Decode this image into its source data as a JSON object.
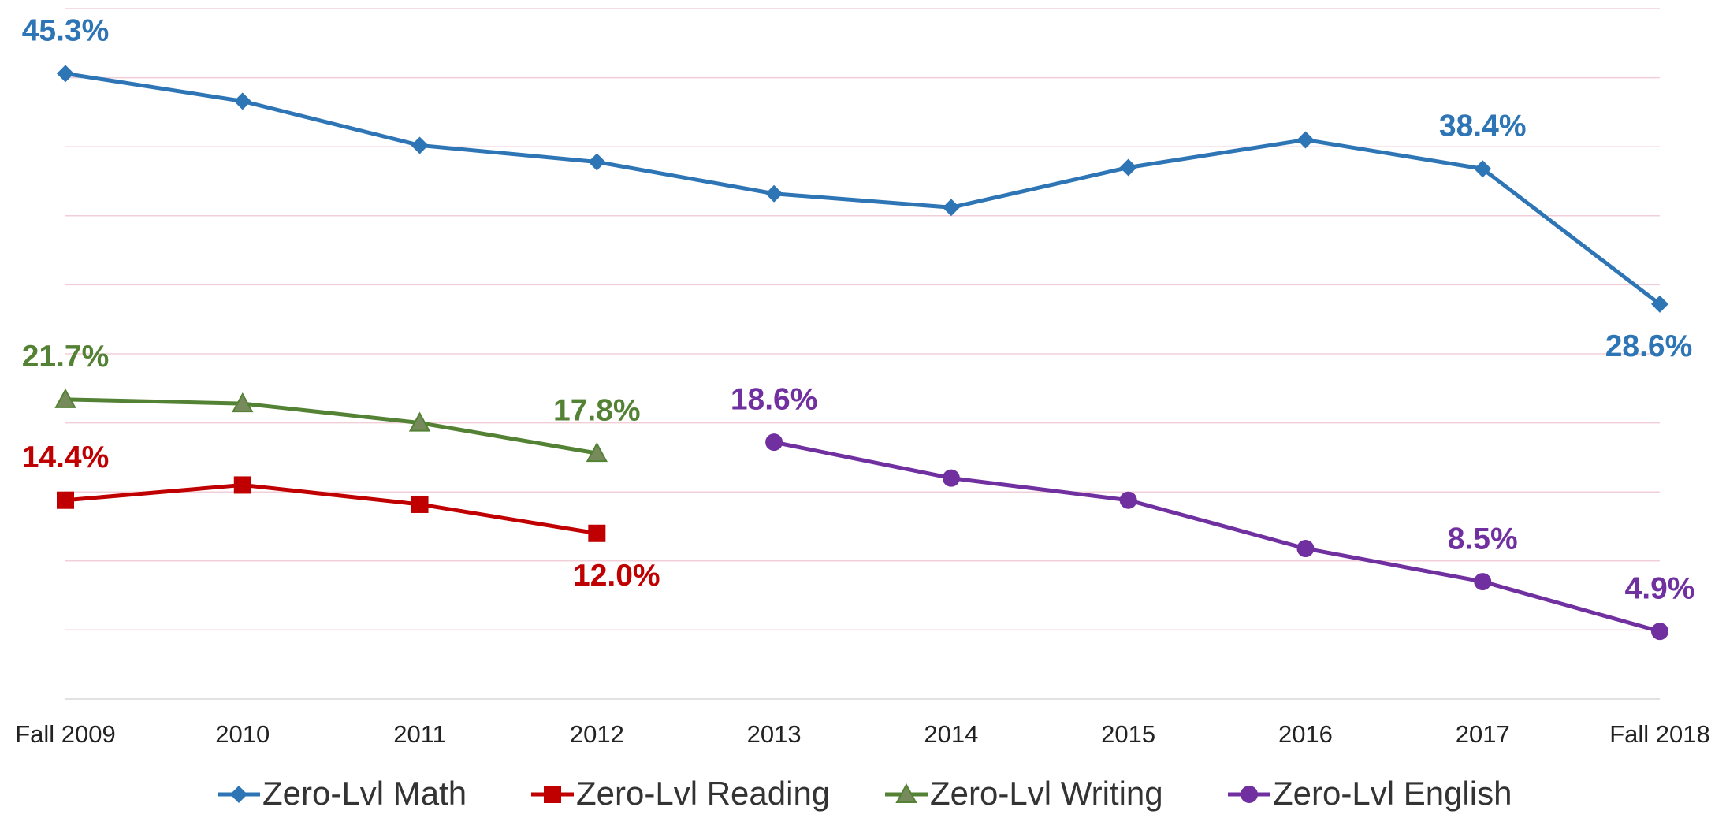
{
  "chart_data": {
    "type": "line",
    "categories": [
      "Fall 2009",
      "2010",
      "2011",
      "2012",
      "2013",
      "2014",
      "2015",
      "2016",
      "2017",
      "Fall 2018"
    ],
    "ylim": [
      0,
      50
    ],
    "yticks": [
      0,
      5,
      10,
      15,
      20,
      25,
      30,
      35,
      40,
      45,
      50
    ],
    "grid": true,
    "legend": "bottom",
    "series": [
      {
        "name": "Zero-Lvl Math",
        "color": "#2e75b6",
        "marker": "diamond",
        "values": [
          45.3,
          43.3,
          40.1,
          38.9,
          36.6,
          35.6,
          38.5,
          40.5,
          38.4,
          28.6
        ],
        "value_labels": [
          "45.3%",
          null,
          null,
          null,
          null,
          null,
          null,
          null,
          "38.4%",
          "28.6%"
        ]
      },
      {
        "name": "Zero-Lvl Reading",
        "color": "#c00000",
        "marker": "square",
        "values": [
          14.4,
          15.5,
          14.1,
          12.0,
          null,
          null,
          null,
          null,
          null,
          null
        ],
        "value_labels": [
          "14.4%",
          null,
          null,
          "12.0%",
          null,
          null,
          null,
          null,
          null,
          null
        ]
      },
      {
        "name": "Zero-Lvl Writing",
        "color": "#548235",
        "marker": "triangle",
        "values": [
          21.7,
          21.4,
          20.0,
          17.8,
          null,
          null,
          null,
          null,
          null,
          null
        ],
        "value_labels": [
          "21.7%",
          null,
          null,
          "17.8%",
          null,
          null,
          null,
          null,
          null,
          null
        ]
      },
      {
        "name": "Zero-Lvl English",
        "color": "#7030a0",
        "marker": "circle",
        "values": [
          null,
          null,
          null,
          null,
          18.6,
          16.0,
          14.4,
          10.9,
          8.5,
          4.9
        ],
        "value_labels": [
          null,
          null,
          null,
          null,
          "18.6%",
          null,
          null,
          null,
          "8.5%",
          "4.9%"
        ]
      }
    ]
  }
}
